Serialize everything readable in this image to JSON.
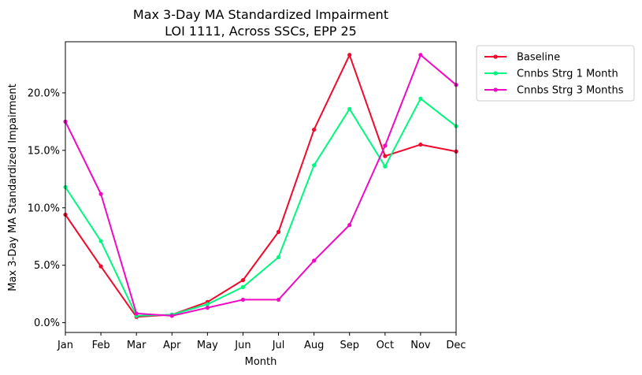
{
  "chart_data": {
    "type": "line",
    "title_line1": "Max 3-Day MA Standardized Impairment",
    "title_line2": "LOI 1111, Across SSCs, EPP 25",
    "xlabel": "Month",
    "ylabel": "Max 3-Day MA Standardized Impairment",
    "categories": [
      "Jan",
      "Feb",
      "Mar",
      "Apr",
      "May",
      "Jun",
      "Jul",
      "Aug",
      "Sep",
      "Oct",
      "Nov",
      "Dec"
    ],
    "yticks": [
      "0.0%",
      "5.0%",
      "10.0%",
      "15.0%",
      "20.0%"
    ],
    "ytick_values": [
      0.0,
      0.05,
      0.1,
      0.15,
      0.2
    ],
    "ylim": [
      -0.0085,
      0.2445
    ],
    "grid": false,
    "legend_position": "outside upper right",
    "series": [
      {
        "name": "Baseline",
        "color": "#f00a2d",
        "values": [
          0.094,
          0.049,
          0.005,
          0.007,
          0.018,
          0.037,
          0.079,
          0.168,
          0.233,
          0.145,
          0.155,
          0.149
        ]
      },
      {
        "name": "Cnnbs Strg 1 Month",
        "color": "#00f87e",
        "values": [
          0.118,
          0.071,
          0.006,
          0.007,
          0.016,
          0.031,
          0.057,
          0.137,
          0.186,
          0.136,
          0.195,
          0.171
        ]
      },
      {
        "name": "Cnnbs Strg 3 Months",
        "color": "#f00ac4",
        "values": [
          0.175,
          0.112,
          0.008,
          0.006,
          0.013,
          0.02,
          0.02,
          0.054,
          0.085,
          0.154,
          0.233,
          0.207
        ]
      }
    ]
  }
}
